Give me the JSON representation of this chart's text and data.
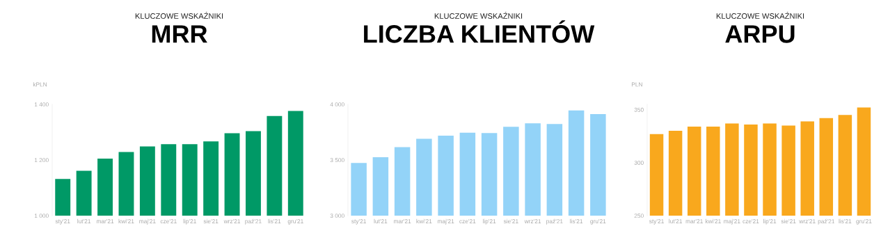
{
  "chart_data": [
    {
      "type": "bar",
      "subtitle": "KLUCZOWE WSKAŹNIKI",
      "title": "MRR",
      "ylabel": "kPLN",
      "categories": [
        "sty'21",
        "lut'21",
        "mar'21",
        "kwi'21",
        "maj'21",
        "cze'21",
        "lip'21",
        "sie'21",
        "wrz'21",
        "paź'21",
        "lis'21",
        "gru'21"
      ],
      "values": [
        1132,
        1161,
        1205,
        1229,
        1249,
        1257,
        1257,
        1267,
        1296,
        1304,
        1358,
        1376
      ],
      "color": "#009966",
      "ylim": [
        1000,
        1400
      ],
      "yticks": [
        {
          "value": 1000,
          "label": "1 000"
        },
        {
          "value": 1200,
          "label": "1 200"
        },
        {
          "value": 1400,
          "label": "1 400"
        }
      ],
      "grid": false
    },
    {
      "type": "bar",
      "subtitle": "KLUCZOWE WSKAŹNIKI",
      "title": "LICZBA KLIENTÓW",
      "categories": [
        "sty'21",
        "lut'21",
        "mar'21",
        "kwi'21",
        "maj'21",
        "cze'21",
        "lip'21",
        "sie'21",
        "wrz'21",
        "paź'21",
        "lis'21",
        "gru'21"
      ],
      "values": [
        3473,
        3525,
        3616,
        3690,
        3718,
        3746,
        3742,
        3798,
        3829,
        3824,
        3946,
        3913
      ],
      "color": "#93d3f8",
      "ylim": [
        3000,
        4000
      ],
      "yticks": [
        {
          "value": 3000,
          "label": "3 000"
        },
        {
          "value": 3500,
          "label": "3 500"
        },
        {
          "value": 4000,
          "label": "4 000"
        }
      ],
      "grid": false
    },
    {
      "type": "bar",
      "subtitle": "KLUCZOWE WSKAŹNIKI",
      "title": "ARPU",
      "ylabel": "PLN",
      "categories": [
        "sty'21",
        "lut'21",
        "mar'21",
        "kwi'21",
        "maj'21",
        "cze'21",
        "lip'21",
        "sie'21",
        "wrz'21",
        "paź'21",
        "lis'21",
        "gru'21"
      ],
      "values": [
        327,
        330,
        334,
        334,
        337,
        336,
        337,
        335,
        339,
        342,
        345,
        352
      ],
      "color": "#f9a81d",
      "ylim": [
        250,
        355
      ],
      "yticks": [
        250,
        300,
        350
      ],
      "grid": false
    }
  ]
}
